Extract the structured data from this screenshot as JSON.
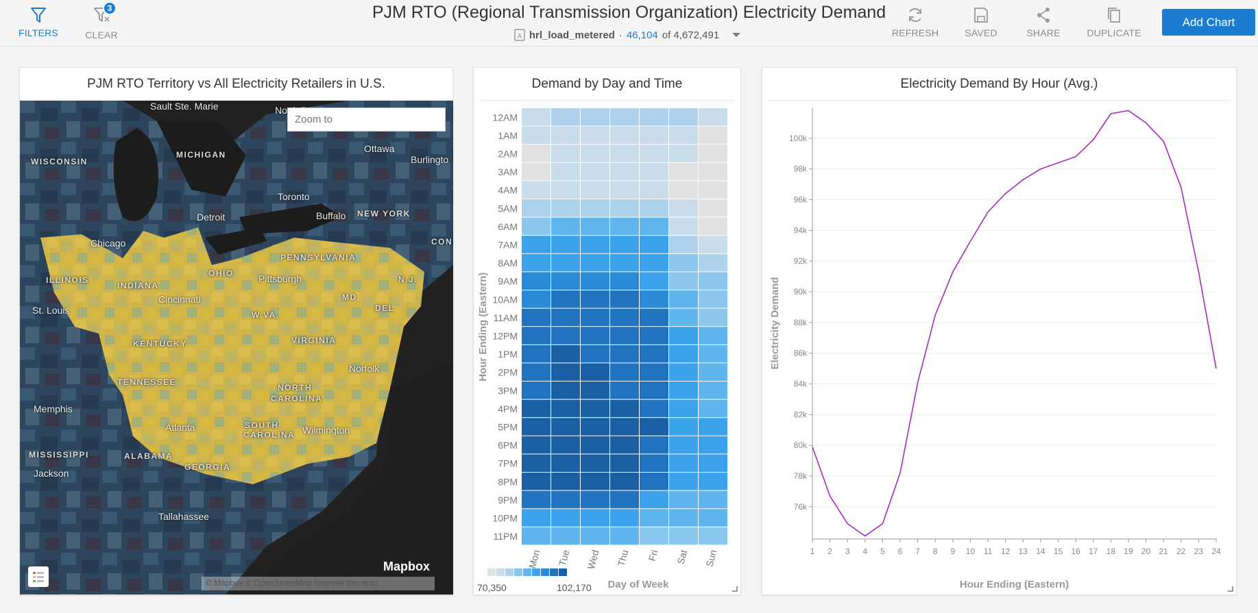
{
  "toolbar": {
    "filters_label": "FILTERS",
    "clear_label": "CLEAR",
    "clear_badge": "3",
    "refresh_label": "REFRESH",
    "saved_label": "SAVED",
    "share_label": "SHARE",
    "duplicate_label": "DUPLICATE",
    "add_chart_label": "Add Chart"
  },
  "header": {
    "title": "PJM RTO (Regional Transmission Organization) Electricity Demand",
    "dataset": "hrl_load_metered",
    "separator": "·",
    "filtered_count": "46,104",
    "of_label": "of 4,672,491"
  },
  "map_card": {
    "title": "PJM RTO Territory vs All Electricity Retailers in U.S.",
    "zoom_placeholder": "Zoom to",
    "logo": "Mapbox",
    "attribution": "© Mapbox  © OpenStreetMap  Improve this map",
    "labels": [
      {
        "text": "Sault Ste. Marie",
        "cls": "city"
      },
      {
        "text": "North B",
        "cls": "city"
      },
      {
        "text": "Ottawa",
        "cls": "city"
      },
      {
        "text": "Burlingto",
        "cls": "city"
      },
      {
        "text": "WISCONSIN",
        "cls": "st"
      },
      {
        "text": "MICHIGAN",
        "cls": "st"
      },
      {
        "text": "Toronto",
        "cls": "city"
      },
      {
        "text": "Detroit",
        "cls": "city"
      },
      {
        "text": "Buffalo",
        "cls": "city"
      },
      {
        "text": "NEW YORK",
        "cls": "st"
      },
      {
        "text": "Chicago",
        "cls": "city"
      },
      {
        "text": "PENNSYLVANIA",
        "cls": "st"
      },
      {
        "text": "OHIO",
        "cls": "st"
      },
      {
        "text": "Pittsburgh",
        "cls": "city"
      },
      {
        "text": "ILLINOIS",
        "cls": "st"
      },
      {
        "text": "INDIANA",
        "cls": "st"
      },
      {
        "text": "N.J.",
        "cls": "st"
      },
      {
        "text": "Cincinnati",
        "cls": "city"
      },
      {
        "text": "MD.",
        "cls": "st"
      },
      {
        "text": "St. Louis",
        "cls": "city"
      },
      {
        "text": "W.VA.",
        "cls": "st"
      },
      {
        "text": "DEL",
        "cls": "st"
      },
      {
        "text": "KENTUCKY",
        "cls": "st"
      },
      {
        "text": "VIRGINIA",
        "cls": "st"
      },
      {
        "text": "Norfolk",
        "cls": "city"
      },
      {
        "text": "TENNESSEE",
        "cls": "st"
      },
      {
        "text": "NORTH",
        "cls": "st"
      },
      {
        "text": "CAROLINA",
        "cls": "st"
      },
      {
        "text": "Memphis",
        "cls": "city"
      },
      {
        "text": "Atlanta",
        "cls": "city"
      },
      {
        "text": "SOUTH",
        "cls": "st"
      },
      {
        "text": "CAROLINA",
        "cls": "st"
      },
      {
        "text": "Wilmington",
        "cls": "city"
      },
      {
        "text": "MISSISSIPPI",
        "cls": "st"
      },
      {
        "text": "ALABAMA",
        "cls": "st"
      },
      {
        "text": "GEORGIA",
        "cls": "st"
      },
      {
        "text": "Jackson",
        "cls": "city"
      },
      {
        "text": "Tallahassee",
        "cls": "city"
      },
      {
        "text": "CON",
        "cls": "st"
      }
    ]
  },
  "heatmap_card": {
    "title": "Demand by Day and Time",
    "y_title": "Hour Ending (Eastern)",
    "x_title": "Day of Week",
    "legend_min": "70,350",
    "legend_max": "102,170",
    "legend_colors": [
      "#e1e1e1",
      "#c9dcea",
      "#aed2ec",
      "#8cc8ee",
      "#5fb6ee",
      "#3aa3ec",
      "#2a8ad8",
      "#1f73bf",
      "#1a5fa3"
    ],
    "days": [
      "Mon",
      "Tue",
      "Wed",
      "Thu",
      "Fri",
      "Sat",
      "Sun"
    ],
    "hours": [
      "12AM",
      "1AM",
      "2AM",
      "3AM",
      "4AM",
      "5AM",
      "6AM",
      "7AM",
      "8AM",
      "9AM",
      "10AM",
      "11AM",
      "12PM",
      "1PM",
      "2PM",
      "3PM",
      "4PM",
      "5PM",
      "6PM",
      "7PM",
      "8PM",
      "9PM",
      "10PM",
      "11PM"
    ],
    "levels": [
      [
        1,
        2,
        2,
        2,
        2,
        2,
        1
      ],
      [
        1,
        1,
        1,
        1,
        1,
        1,
        0
      ],
      [
        0,
        1,
        1,
        1,
        1,
        1,
        0
      ],
      [
        0,
        1,
        1,
        1,
        1,
        0,
        0
      ],
      [
        1,
        1,
        1,
        1,
        1,
        0,
        0
      ],
      [
        2,
        2,
        2,
        2,
        2,
        1,
        0
      ],
      [
        3,
        4,
        4,
        4,
        4,
        1,
        0
      ],
      [
        5,
        5,
        5,
        5,
        5,
        2,
        1
      ],
      [
        5,
        5,
        5,
        5,
        5,
        3,
        2
      ],
      [
        6,
        6,
        6,
        6,
        5,
        3,
        3
      ],
      [
        6,
        7,
        7,
        7,
        6,
        4,
        3
      ],
      [
        7,
        7,
        7,
        7,
        7,
        4,
        3
      ],
      [
        7,
        7,
        7,
        7,
        7,
        5,
        4
      ],
      [
        7,
        8,
        7,
        7,
        7,
        5,
        4
      ],
      [
        7,
        8,
        8,
        7,
        7,
        5,
        4
      ],
      [
        7,
        8,
        8,
        7,
        7,
        5,
        4
      ],
      [
        8,
        8,
        8,
        8,
        7,
        5,
        4
      ],
      [
        8,
        8,
        8,
        8,
        8,
        5,
        5
      ],
      [
        8,
        8,
        8,
        8,
        7,
        5,
        5
      ],
      [
        8,
        8,
        8,
        8,
        7,
        5,
        5
      ],
      [
        8,
        8,
        8,
        8,
        7,
        5,
        5
      ],
      [
        7,
        7,
        7,
        7,
        5,
        4,
        4
      ],
      [
        5,
        5,
        5,
        5,
        4,
        4,
        4
      ],
      [
        4,
        4,
        4,
        4,
        3,
        3,
        3
      ]
    ]
  },
  "line_card": {
    "title": "Electricity Demand By Hour (Avg.)",
    "chart_data": {
      "type": "line",
      "xlabel": "Hour Ending (Eastern)",
      "ylabel": "Electricity Demand",
      "x": [
        1,
        2,
        3,
        4,
        5,
        6,
        7,
        8,
        9,
        10,
        11,
        12,
        13,
        14,
        15,
        16,
        17,
        18,
        19,
        20,
        21,
        22,
        23,
        24
      ],
      "series": [
        {
          "values": [
            79900,
            76700,
            74900,
            74100,
            74900,
            78200,
            84100,
            88500,
            91300,
            93300,
            95200,
            96400,
            97300,
            98000,
            98400,
            98800,
            99900,
            101600,
            101800,
            101000,
            99800,
            96800,
            91300,
            85000
          ],
          "color": "#a829c0"
        }
      ],
      "ylim": [
        73900,
        102000
      ],
      "yticks": [
        76000,
        78000,
        80000,
        82000,
        84000,
        86000,
        88000,
        90000,
        92000,
        94000,
        96000,
        98000,
        100000
      ],
      "yticklabels": [
        "76k",
        "78k",
        "80k",
        "82k",
        "84k",
        "86k",
        "88k",
        "90k",
        "92k",
        "94k",
        "96k",
        "98k",
        "100k"
      ],
      "grid": true
    }
  }
}
